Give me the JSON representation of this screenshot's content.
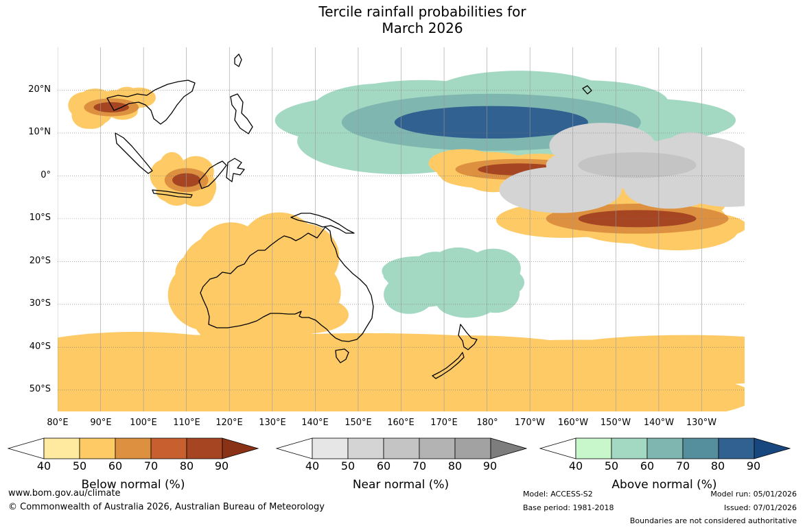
{
  "title": {
    "line1": "Tercile rainfall probabilities for",
    "line2": "March 2026"
  },
  "map": {
    "lat_labels": [
      "20°N",
      "10°N",
      "0°",
      "10°S",
      "20°S",
      "30°S",
      "40°S",
      "50°S"
    ],
    "lon_labels": [
      "80°E",
      "90°E",
      "100°E",
      "110°E",
      "120°E",
      "130°E",
      "140°E",
      "150°E",
      "160°E",
      "170°E",
      "180°",
      "170°W",
      "160°W",
      "150°W",
      "140°W",
      "130°W"
    ],
    "extent": {
      "lon_min": 80,
      "lon_max": 240,
      "lat_min": -55,
      "lat_max": 30
    },
    "features": [
      {
        "category": "above",
        "level": 80,
        "lon_range": [
          140,
          222
        ],
        "lat_range": [
          3,
          22
        ],
        "shape": "band"
      },
      {
        "category": "below",
        "level": 80,
        "lon_range": [
          170,
          205
        ],
        "lat_range": [
          -2,
          5
        ],
        "shape": "band"
      },
      {
        "category": "below",
        "level": 80,
        "lon_range": [
          190,
          240
        ],
        "lat_range": [
          -15,
          -5
        ],
        "shape": "band"
      },
      {
        "category": "below",
        "level": 80,
        "lon_range": [
          85,
          100
        ],
        "lat_range": [
          13,
          19
        ],
        "shape": "blob"
      },
      {
        "category": "below",
        "level": 80,
        "lon_range": [
          104,
          116
        ],
        "lat_range": [
          -5,
          3
        ],
        "shape": "blob"
      },
      {
        "category": "near",
        "level": 60,
        "lon_range": [
          190,
          240
        ],
        "lat_range": [
          -5,
          10
        ],
        "shape": "band"
      },
      {
        "category": "above",
        "level": 60,
        "lon_range": [
          160,
          185
        ],
        "lat_range": [
          -30,
          -20
        ],
        "shape": "patches"
      },
      {
        "category": "below",
        "level": 50,
        "lon_range": [
          80,
          240
        ],
        "lat_range": [
          -55,
          -40
        ],
        "shape": "patches"
      },
      {
        "category": "below",
        "level": 50,
        "lon_range": [
          110,
          140
        ],
        "lat_range": [
          -35,
          -15
        ],
        "shape": "patches"
      }
    ]
  },
  "colorbars": {
    "ticks": [
      "40",
      "50",
      "60",
      "70",
      "80",
      "90"
    ],
    "below": {
      "label": "Below normal (%)",
      "colors": [
        "#ffffff",
        "#ffeaa0",
        "#fdca66",
        "#dd9140",
        "#c7602e",
        "#a54522",
        "#8a3215"
      ]
    },
    "near": {
      "label": "Near normal (%)",
      "colors": [
        "#ffffff",
        "#e6e6e6",
        "#d4d4d4",
        "#c4c4c4",
        "#b3b3b3",
        "#a2a2a2",
        "#7d7d7d"
      ]
    },
    "above": {
      "label": "Above normal (%)",
      "colors": [
        "#ffffff",
        "#c8f7cc",
        "#a3d9c2",
        "#7fb6b0",
        "#558e9d",
        "#306190",
        "#18467e"
      ]
    }
  },
  "footer": {
    "url": "www.bom.gov.au/climate",
    "copyright": "© Commonwealth of Australia 2026, Australian Bureau of Meteorology",
    "model": "Model: ACCESS-S2",
    "base_period": "Base period: 1981-2018",
    "model_run": "Model run: 05/01/2026",
    "issued": "Issued: 07/01/2026",
    "disclaimer": "Boundaries are not considered authoritative"
  }
}
